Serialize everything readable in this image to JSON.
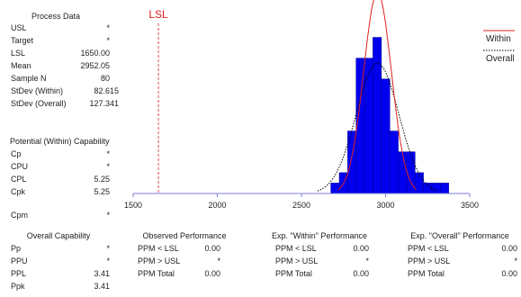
{
  "process_data": {
    "heading": "Process Data",
    "rows": [
      {
        "label": "USL",
        "value": "*"
      },
      {
        "label": "Target",
        "value": "*"
      },
      {
        "label": "LSL",
        "value": "1650.00"
      },
      {
        "label": "Mean",
        "value": "2952.05"
      },
      {
        "label": "Sample N",
        "value": "80"
      },
      {
        "label": "StDev (Within)",
        "value": "82.615"
      },
      {
        "label": "StDev (Overall)",
        "value": "127.341"
      }
    ]
  },
  "potential_capability": {
    "heading": "Potential (Within) Capability",
    "rows": [
      {
        "label": "Cp",
        "value": "*"
      },
      {
        "label": "CPU",
        "value": "*"
      },
      {
        "label": "CPL",
        "value": "5.25"
      },
      {
        "label": "Cpk",
        "value": "5.25"
      }
    ],
    "cpm": {
      "label": "Cpm",
      "value": "*"
    }
  },
  "overall_capability": {
    "heading": "Overall Capability",
    "rows": [
      {
        "label": "Pp",
        "value": "*"
      },
      {
        "label": "PPU",
        "value": "*"
      },
      {
        "label": "PPL",
        "value": "3.41"
      },
      {
        "label": "Ppk",
        "value": "3.41"
      }
    ]
  },
  "observed_performance": {
    "heading": "Observed Performance",
    "rows": [
      {
        "label": "PPM < LSL",
        "value": "0.00"
      },
      {
        "label": "PPM > USL",
        "value": "*"
      },
      {
        "label": "PPM Total",
        "value": "0.00"
      }
    ]
  },
  "within_performance": {
    "heading": "Exp. \"Within\" Performance",
    "rows": [
      {
        "label": "PPM < LSL",
        "value": "0.00"
      },
      {
        "label": "PPM > USL",
        "value": "*"
      },
      {
        "label": "PPM Total",
        "value": "0.00"
      }
    ]
  },
  "overall_performance": {
    "heading": "Exp. \"Overall\" Performance",
    "rows": [
      {
        "label": "PPM < LSL",
        "value": "0.00"
      },
      {
        "label": "PPM > USL",
        "value": "*"
      },
      {
        "label": "PPM Total",
        "value": "0.00"
      }
    ]
  },
  "chart_data": {
    "type": "bar",
    "title": "",
    "xlabel": "",
    "ylabel": "",
    "xlim": [
      1500,
      3500
    ],
    "ylim": [
      0,
      16
    ],
    "xticks": [
      1500,
      2000,
      2500,
      3000,
      3500
    ],
    "bin_width": 50,
    "bins": [
      {
        "x": 2700,
        "count": 1
      },
      {
        "x": 2750,
        "count": 2
      },
      {
        "x": 2800,
        "count": 6
      },
      {
        "x": 2850,
        "count": 13
      },
      {
        "x": 2900,
        "count": 13
      },
      {
        "x": 2950,
        "count": 15
      },
      {
        "x": 3000,
        "count": 11
      },
      {
        "x": 3050,
        "count": 6
      },
      {
        "x": 3100,
        "count": 4
      },
      {
        "x": 3150,
        "count": 4
      },
      {
        "x": 3200,
        "count": 2
      },
      {
        "x": 3250,
        "count": 1
      },
      {
        "x": 3300,
        "count": 1
      },
      {
        "x": 3350,
        "count": 1
      }
    ],
    "lsl": {
      "label": "LSL",
      "value": 1650
    },
    "curves": {
      "mean": 2952.05,
      "sample_n": 80,
      "stdev_within": 82.615,
      "stdev_overall": 127.341
    },
    "legend": [
      {
        "name": "Within",
        "color": "#e02020",
        "style": "solid"
      },
      {
        "name": "Overall",
        "color": "#000000",
        "style": "dotted"
      }
    ],
    "legend_position": "top-right",
    "grid": false,
    "colors": {
      "bars": "#0000ee",
      "bar_edge": "#00009a",
      "axis": "#7f7fdf",
      "lsl": "#e02020"
    }
  }
}
